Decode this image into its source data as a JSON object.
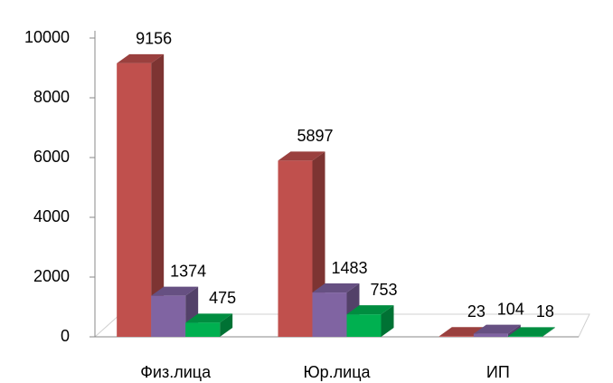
{
  "chart_data": {
    "type": "bar3d",
    "categories": [
      "Физ.лица",
      "Юр.лица",
      "ИП"
    ],
    "series": [
      {
        "color": "#c0504d",
        "values": [
          9156,
          5897,
          23
        ]
      },
      {
        "color": "#8064a2",
        "values": [
          1374,
          1483,
          104
        ]
      },
      {
        "color": "#00b050",
        "values": [
          475,
          753,
          18
        ]
      }
    ],
    "ylim": [
      0,
      10000
    ],
    "yticks": [
      0,
      2000,
      4000,
      6000,
      8000,
      10000
    ]
  }
}
